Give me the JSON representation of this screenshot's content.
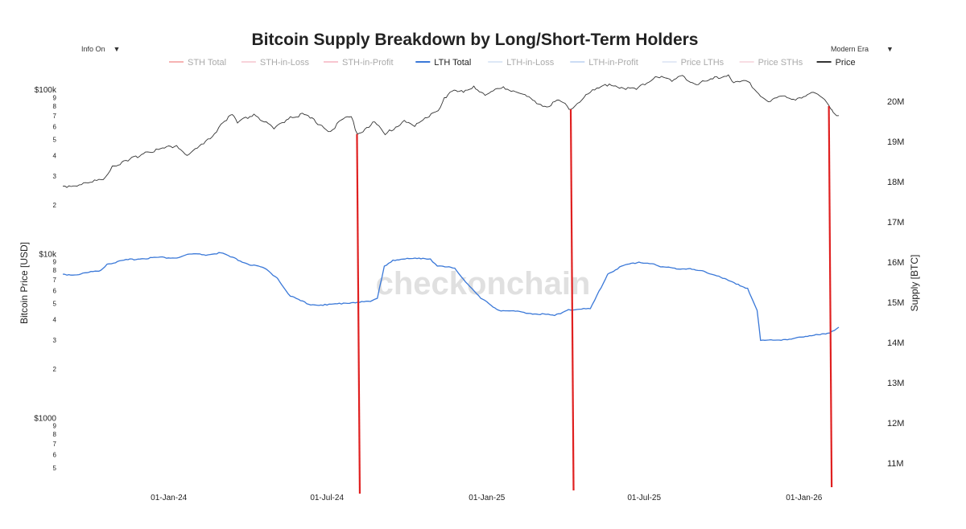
{
  "controls": {
    "info_label": "Info On",
    "era_label": "Modern Era",
    "arrow": "▼"
  },
  "chart_data": {
    "type": "line",
    "title": "Bitcoin Supply Breakdown by Long/Short-Term Holders",
    "watermark": "checkonchain",
    "ylabel_left": "Bitcoin Price [USD]",
    "ylabel_right": "Supply [BTC]",
    "y_left_scale": "log",
    "y_left_range": [
      340,
      120000
    ],
    "y_left_ticks": [
      {
        "v": 1000,
        "label": "$1000"
      },
      {
        "v": 2000,
        "label": "2"
      },
      {
        "v": 3000,
        "label": "3"
      },
      {
        "v": 4000,
        "label": "4"
      },
      {
        "v": 5000,
        "label": "5"
      },
      {
        "v": 6000,
        "label": "6"
      },
      {
        "v": 7000,
        "label": "7"
      },
      {
        "v": 8000,
        "label": "8"
      },
      {
        "v": 9000,
        "label": "9"
      },
      {
        "v": 10000,
        "label": "$10k"
      },
      {
        "v": 20000,
        "label": "2"
      },
      {
        "v": 30000,
        "label": "3"
      },
      {
        "v": 40000,
        "label": "4"
      },
      {
        "v": 50000,
        "label": "5"
      },
      {
        "v": 60000,
        "label": "6"
      },
      {
        "v": 70000,
        "label": "7"
      },
      {
        "v": 80000,
        "label": "8"
      },
      {
        "v": 90000,
        "label": "9"
      },
      {
        "v": 100000,
        "label": "$100k"
      },
      {
        "v": 500,
        "label": "5"
      },
      {
        "v": 600,
        "label": "6"
      },
      {
        "v": 700,
        "label": "7"
      },
      {
        "v": 800,
        "label": "8"
      },
      {
        "v": 900,
        "label": "9"
      }
    ],
    "y_right_range": [
      10200000,
      20600000
    ],
    "y_right_ticks": [
      {
        "v": 11000000,
        "label": "11M"
      },
      {
        "v": 12000000,
        "label": "12M"
      },
      {
        "v": 13000000,
        "label": "13M"
      },
      {
        "v": 14000000,
        "label": "14M"
      },
      {
        "v": 15000000,
        "label": "15M"
      },
      {
        "v": 16000000,
        "label": "16M"
      },
      {
        "v": 17000000,
        "label": "17M"
      },
      {
        "v": 18000000,
        "label": "18M"
      },
      {
        "v": 19000000,
        "label": "19M"
      },
      {
        "v": 20000000,
        "label": "20M"
      }
    ],
    "x_range": [
      "2023-09-01",
      "2026-02-10"
    ],
    "x_ticks": [
      {
        "date": "2024-01-01",
        "label": "01-Jan-24"
      },
      {
        "date": "2024-07-01",
        "label": "01-Jul-24"
      },
      {
        "date": "2025-01-01",
        "label": "01-Jan-25"
      },
      {
        "date": "2025-07-01",
        "label": "01-Jul-25"
      },
      {
        "date": "2026-01-01",
        "label": "01-Jan-26"
      }
    ],
    "legend": [
      {
        "name": "STH Total",
        "color": "#f08080",
        "active": false
      },
      {
        "name": "STH-in-Loss",
        "color": "#f4b6c2",
        "active": false
      },
      {
        "name": "STH-in-Profit",
        "color": "#f4a0b0",
        "active": false
      },
      {
        "name": "LTH Total",
        "color": "#3a78d8",
        "active": true
      },
      {
        "name": "LTH-in-Loss",
        "color": "#c6d8f0",
        "active": false
      },
      {
        "name": "LTH-in-Profit",
        "color": "#a8c4ec",
        "active": false
      },
      {
        "name": "Price LTHs",
        "color": "#d0dcf0",
        "active": false
      },
      {
        "name": "Price STHs",
        "color": "#f4c6d0",
        "active": false
      },
      {
        "name": "Price",
        "color": "#333333",
        "active": true
      }
    ],
    "series": [
      {
        "name": "Price",
        "axis": "left",
        "color": "#333333",
        "points": [
          [
            "2023-09-01",
            26000
          ],
          [
            "2023-09-20",
            26500
          ],
          [
            "2023-10-05",
            27500
          ],
          [
            "2023-10-20",
            29500
          ],
          [
            "2023-10-28",
            34500
          ],
          [
            "2023-11-15",
            37000
          ],
          [
            "2023-12-05",
            42000
          ],
          [
            "2023-12-20",
            43500
          ],
          [
            "2024-01-10",
            46000
          ],
          [
            "2024-01-22",
            40000
          ],
          [
            "2024-02-10",
            47000
          ],
          [
            "2024-02-20",
            52000
          ],
          [
            "2024-03-01",
            62000
          ],
          [
            "2024-03-14",
            71000
          ],
          [
            "2024-03-20",
            63000
          ],
          [
            "2024-04-08",
            71500
          ],
          [
            "2024-04-20",
            64000
          ],
          [
            "2024-05-01",
            58000
          ],
          [
            "2024-05-20",
            69000
          ],
          [
            "2024-06-05",
            71000
          ],
          [
            "2024-06-25",
            61000
          ],
          [
            "2024-07-05",
            56000
          ],
          [
            "2024-07-20",
            67000
          ],
          [
            "2024-07-29",
            69000
          ],
          [
            "2024-08-05",
            54000
          ],
          [
            "2024-08-25",
            64000
          ],
          [
            "2024-09-06",
            53500
          ],
          [
            "2024-09-28",
            65500
          ],
          [
            "2024-10-10",
            60000
          ],
          [
            "2024-10-29",
            72000
          ],
          [
            "2024-11-06",
            75000
          ],
          [
            "2024-11-13",
            90000
          ],
          [
            "2024-11-22",
            98500
          ],
          [
            "2024-12-05",
            97000
          ],
          [
            "2024-12-17",
            106000
          ],
          [
            "2024-12-30",
            93000
          ],
          [
            "2025-01-20",
            105000
          ],
          [
            "2025-02-05",
            97000
          ],
          [
            "2025-02-25",
            86000
          ],
          [
            "2025-03-11",
            79000
          ],
          [
            "2025-03-25",
            87000
          ],
          [
            "2025-04-08",
            76500
          ],
          [
            "2025-04-25",
            94000
          ],
          [
            "2025-05-10",
            103000
          ],
          [
            "2025-05-22",
            109000
          ],
          [
            "2025-06-05",
            104000
          ],
          [
            "2025-06-22",
            101000
          ],
          [
            "2025-07-14",
            121000
          ],
          [
            "2025-07-28",
            118000
          ],
          [
            "2025-08-02",
            113000
          ],
          [
            "2025-08-14",
            123000
          ],
          [
            "2025-08-30",
            108000
          ],
          [
            "2025-09-18",
            117000
          ],
          [
            "2025-10-06",
            124000
          ],
          [
            "2025-10-12",
            111000
          ],
          [
            "2025-10-28",
            113000
          ],
          [
            "2025-11-05",
            101000
          ],
          [
            "2025-11-21",
            85000
          ],
          [
            "2025-12-05",
            92000
          ],
          [
            "2025-12-20",
            88000
          ],
          [
            "2026-01-05",
            94000
          ],
          [
            "2026-01-14",
            96000
          ],
          [
            "2026-01-22",
            90000
          ],
          [
            "2026-01-30",
            80000
          ],
          [
            "2026-02-02",
            76000
          ],
          [
            "2026-02-05",
            72000
          ],
          [
            "2026-02-10",
            70000
          ]
        ]
      },
      {
        "name": "LTH Total",
        "axis": "right",
        "color": "#3a78d8",
        "points": [
          [
            "2023-09-01",
            15700000
          ],
          [
            "2023-09-15",
            15680000
          ],
          [
            "2023-10-15",
            15800000
          ],
          [
            "2023-10-22",
            15950000
          ],
          [
            "2023-11-15",
            16060000
          ],
          [
            "2023-12-20",
            16120000
          ],
          [
            "2024-01-10",
            16100000
          ],
          [
            "2024-01-25",
            16200000
          ],
          [
            "2024-02-15",
            16180000
          ],
          [
            "2024-03-01",
            16230000
          ],
          [
            "2024-03-12",
            16130000
          ],
          [
            "2024-04-01",
            15950000
          ],
          [
            "2024-04-20",
            15850000
          ],
          [
            "2024-05-05",
            15600000
          ],
          [
            "2024-05-20",
            15150000
          ],
          [
            "2024-06-10",
            14950000
          ],
          [
            "2024-07-01",
            14930000
          ],
          [
            "2024-07-20",
            14980000
          ],
          [
            "2024-08-05",
            15000000
          ],
          [
            "2024-08-20",
            15020000
          ],
          [
            "2024-08-28",
            15100000
          ],
          [
            "2024-09-05",
            15900000
          ],
          [
            "2024-09-15",
            16050000
          ],
          [
            "2024-10-15",
            16100000
          ],
          [
            "2024-10-28",
            16080000
          ],
          [
            "2024-11-05",
            15900000
          ],
          [
            "2024-11-25",
            15850000
          ],
          [
            "2024-12-10",
            15450000
          ],
          [
            "2024-12-25",
            15100000
          ],
          [
            "2025-01-15",
            14800000
          ],
          [
            "2025-02-10",
            14760000
          ],
          [
            "2025-02-25",
            14710000
          ],
          [
            "2025-03-10",
            14700000
          ],
          [
            "2025-03-20",
            14670000
          ],
          [
            "2025-04-05",
            14820000
          ],
          [
            "2025-04-20",
            14830000
          ],
          [
            "2025-04-30",
            14840000
          ],
          [
            "2025-05-05",
            15050000
          ],
          [
            "2025-05-20",
            15700000
          ],
          [
            "2025-06-05",
            15900000
          ],
          [
            "2025-06-25",
            16000000
          ],
          [
            "2025-07-10",
            15960000
          ],
          [
            "2025-07-20",
            15880000
          ],
          [
            "2025-08-05",
            15850000
          ],
          [
            "2025-08-25",
            15820000
          ],
          [
            "2025-09-10",
            15750000
          ],
          [
            "2025-09-25",
            15650000
          ],
          [
            "2025-10-15",
            15450000
          ],
          [
            "2025-10-28",
            15350000
          ],
          [
            "2025-11-08",
            14800000
          ],
          [
            "2025-11-12",
            14050000
          ],
          [
            "2025-12-01",
            14060000
          ],
          [
            "2025-12-20",
            14100000
          ],
          [
            "2026-01-05",
            14150000
          ],
          [
            "2026-01-15",
            14200000
          ],
          [
            "2026-01-28",
            14230000
          ],
          [
            "2026-02-05",
            14300000
          ],
          [
            "2026-02-10",
            14380000
          ]
        ]
      }
    ],
    "annotations": [
      {
        "type": "vline",
        "date": "2024-08-05",
        "color": "#e02020"
      },
      {
        "type": "vline",
        "date": "2025-04-08",
        "color": "#e02020"
      },
      {
        "type": "vline",
        "date": "2026-01-30",
        "color": "#e02020"
      }
    ]
  }
}
